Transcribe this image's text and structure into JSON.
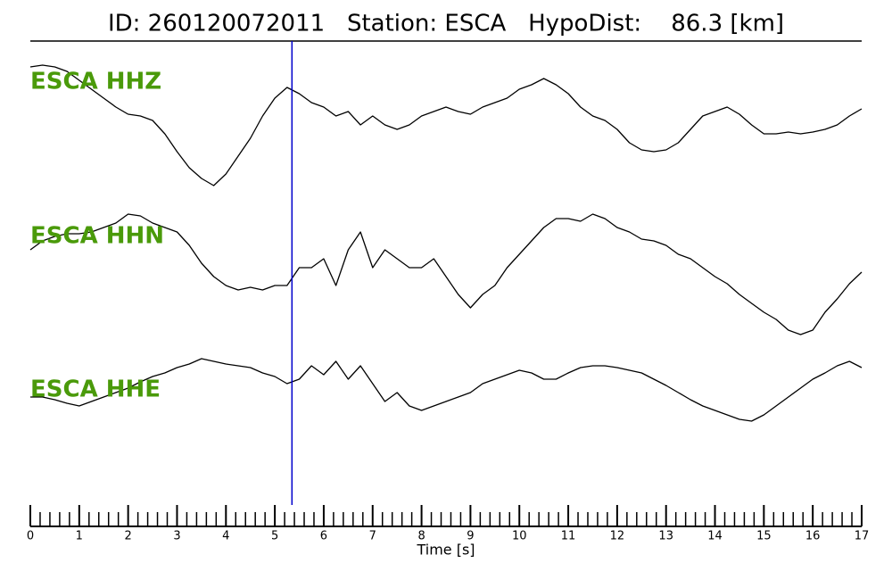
{
  "chart_data": {
    "type": "line",
    "title": "ID: 260120072011   Station: ESCA   HypoDist:    86.3 [km]",
    "xlabel": "Time [s]",
    "xlim": [
      0,
      17
    ],
    "xticks": [
      0,
      1,
      2,
      3,
      4,
      5,
      6,
      7,
      8,
      9,
      10,
      11,
      12,
      13,
      14,
      15,
      16,
      17
    ],
    "xminorticks": [
      0.2,
      0.4,
      0.6,
      0.8,
      1.2,
      1.4,
      1.6,
      1.8,
      2.2,
      2.4,
      2.6,
      2.8,
      3.2,
      3.4,
      3.6,
      3.8,
      4.2,
      4.4,
      4.6,
      4.8,
      5.2,
      5.4,
      5.6,
      5.8,
      6.2,
      6.4,
      6.6,
      6.8,
      7.2,
      7.4,
      7.6,
      7.8,
      8.2,
      8.4,
      8.6,
      8.8,
      9.2,
      9.4,
      9.6,
      9.8,
      10.2,
      10.4,
      10.6,
      10.8,
      11.2,
      11.4,
      11.6,
      11.8,
      12.2,
      12.4,
      12.6,
      12.8,
      13.2,
      13.4,
      13.6,
      13.8,
      14.2,
      14.4,
      14.6,
      14.8,
      15.2,
      15.4,
      15.6,
      15.8,
      16.2,
      16.4,
      16.6,
      16.8
    ],
    "pick_time": 5.35,
    "pick_color": "#0000cc",
    "label_color": "#4a9a0a",
    "x": [
      0,
      0.25,
      0.5,
      0.75,
      1,
      1.25,
      1.5,
      1.75,
      2,
      2.25,
      2.5,
      2.75,
      3,
      3.25,
      3.5,
      3.75,
      4,
      4.25,
      4.5,
      4.75,
      5,
      5.25,
      5.5,
      5.75,
      6,
      6.25,
      6.5,
      6.75,
      7,
      7.25,
      7.5,
      7.75,
      8,
      8.25,
      8.5,
      8.75,
      9,
      9.25,
      9.5,
      9.75,
      10,
      10.25,
      10.5,
      10.75,
      11,
      11.25,
      11.5,
      11.75,
      12,
      12.25,
      12.5,
      12.75,
      13,
      13.25,
      13.5,
      13.75,
      14,
      14.25,
      14.5,
      14.75,
      15,
      15.25,
      15.5,
      15.75,
      16,
      16.25,
      16.5,
      16.75,
      17
    ],
    "series": [
      {
        "name": "ESCA HHZ",
        "color": "#000000",
        "values": [
          65,
          67,
          65,
          60,
          50,
          40,
          30,
          20,
          12,
          10,
          5,
          -10,
          -30,
          -48,
          -60,
          -68,
          -55,
          -35,
          -15,
          10,
          30,
          42,
          35,
          25,
          20,
          10,
          15,
          0,
          10,
          0,
          -5,
          0,
          10,
          15,
          20,
          15,
          12,
          20,
          25,
          30,
          40,
          45,
          52,
          45,
          35,
          20,
          10,
          5,
          -5,
          -20,
          -28,
          -30,
          -28,
          -20,
          -5,
          10,
          15,
          20,
          12,
          0,
          -10,
          -10,
          -8,
          -10,
          -8,
          -5,
          0,
          10,
          18
        ]
      },
      {
        "name": "ESCA HHN",
        "color": "#000000",
        "values": [
          20,
          30,
          35,
          38,
          38,
          40,
          45,
          50,
          60,
          58,
          50,
          45,
          40,
          25,
          5,
          -10,
          -20,
          -25,
          -22,
          -25,
          -20,
          -20,
          0,
          0,
          10,
          -20,
          20,
          40,
          0,
          20,
          10,
          0,
          0,
          10,
          -10,
          -30,
          -45,
          -30,
          -20,
          0,
          15,
          30,
          45,
          55,
          55,
          52,
          60,
          55,
          45,
          40,
          32,
          30,
          25,
          15,
          10,
          0,
          -10,
          -18,
          -30,
          -40,
          -50,
          -58,
          -70,
          -75,
          -70,
          -50,
          -35,
          -18,
          -5
        ]
      },
      {
        "name": "ESCA HHE",
        "color": "#000000",
        "values": [
          -15,
          -15,
          -18,
          -22,
          -25,
          -20,
          -15,
          -10,
          -5,
          2,
          8,
          12,
          18,
          22,
          28,
          25,
          22,
          20,
          18,
          12,
          8,
          0,
          5,
          20,
          10,
          25,
          5,
          20,
          0,
          -20,
          -10,
          -25,
          -30,
          -25,
          -20,
          -15,
          -10,
          0,
          5,
          10,
          15,
          12,
          5,
          5,
          12,
          18,
          20,
          20,
          18,
          15,
          12,
          5,
          -2,
          -10,
          -18,
          -25,
          -30,
          -35,
          -40,
          -42,
          -35,
          -25,
          -15,
          -5,
          5,
          12,
          20,
          25,
          18
        ]
      }
    ]
  }
}
